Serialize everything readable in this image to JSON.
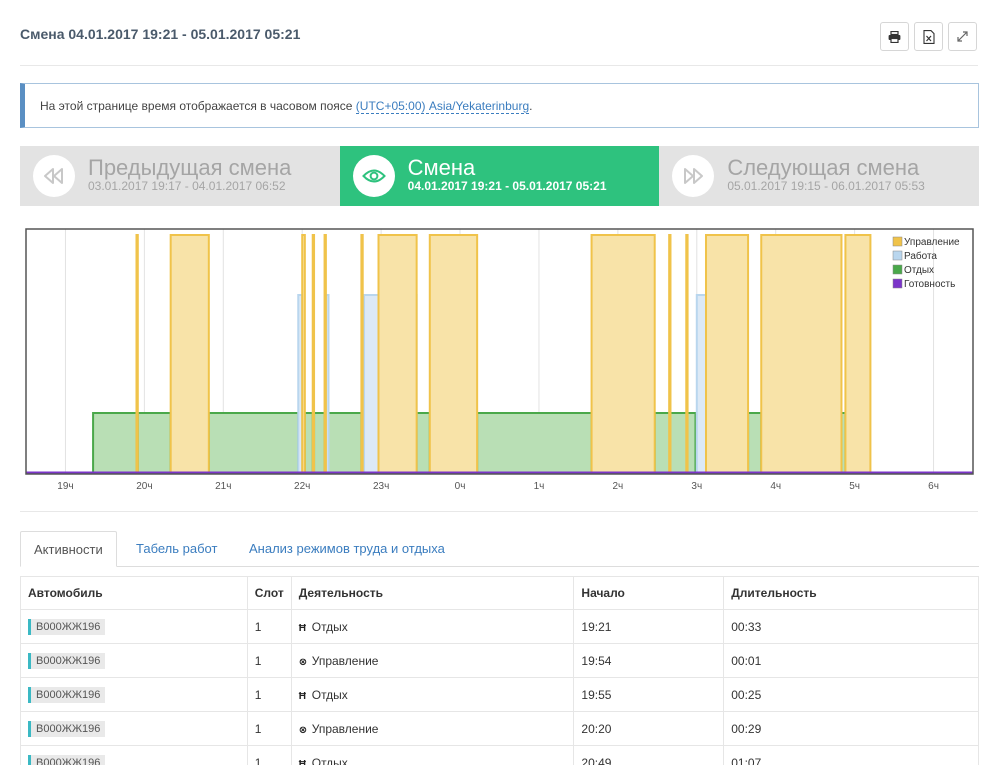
{
  "header": {
    "title": "Смена 04.01.2017 19:21 - 05.01.2017 05:21",
    "icons": [
      "print-icon",
      "excel-icon",
      "expand-icon"
    ]
  },
  "info": {
    "text": "На этой странице время отображается в часовом поясе ",
    "timezone": "(UTC+05:00) Asia/Yekaterinburg",
    "suffix": "."
  },
  "shifts": {
    "previous": {
      "label": "Предыдущая смена",
      "range": "03.01.2017 19:17 - 04.01.2017 06:52",
      "icon": "rewind-icon"
    },
    "current": {
      "label": "Смена",
      "range": "04.01.2017 19:21 - 05.01.2017 05:21",
      "icon": "eye-icon"
    },
    "next": {
      "label": "Следующая смена",
      "range": "05.01.2017 19:15 - 06.01.2017 05:53",
      "icon": "fast-forward-icon"
    }
  },
  "chart_data": {
    "type": "area",
    "x_unit": "hours",
    "x_range": [
      "18:30",
      "6:30"
    ],
    "xticks": [
      "19ч",
      "20ч",
      "21ч",
      "22ч",
      "23ч",
      "0ч",
      "1ч",
      "2ч",
      "3ч",
      "4ч",
      "5ч",
      "6ч"
    ],
    "ylim": [
      0,
      4
    ],
    "grid": true,
    "legend_position": "top-right",
    "series": [
      {
        "name": "Управление",
        "color": "#f0c34a",
        "level": 4,
        "intervals": [
          [
            "19:54",
            "19:55"
          ],
          [
            "20:20",
            "20:49"
          ],
          [
            "22:00",
            "22:02"
          ],
          [
            "22:08",
            "22:09"
          ],
          [
            "22:17",
            "22:18"
          ],
          [
            "22:45",
            "22:46"
          ],
          [
            "22:58",
            "23:27"
          ],
          [
            "23:37",
            "00:13"
          ],
          [
            "01:40",
            "02:28"
          ],
          [
            "02:39",
            "02:40"
          ],
          [
            "02:52",
            "02:53"
          ],
          [
            "03:07",
            "03:39"
          ],
          [
            "03:49",
            "04:50"
          ],
          [
            "04:53",
            "05:12"
          ]
        ]
      },
      {
        "name": "Работа",
        "color": "#b9d6ee",
        "level": 3,
        "intervals": [
          [
            "21:57",
            "22:00"
          ],
          [
            "22:18",
            "22:20"
          ],
          [
            "22:47",
            "22:58"
          ],
          [
            "23:26",
            "23:27"
          ],
          [
            "03:00",
            "03:07"
          ]
        ]
      },
      {
        "name": "Отдых",
        "color": "#4aa84a",
        "level": 1,
        "intervals": [
          [
            "19:21",
            "19:54"
          ],
          [
            "19:55",
            "20:20"
          ],
          [
            "20:49",
            "21:57"
          ],
          [
            "22:02",
            "22:08"
          ],
          [
            "22:09",
            "22:17"
          ],
          [
            "22:18",
            "22:45"
          ],
          [
            "23:27",
            "23:37"
          ],
          [
            "00:13",
            "01:40"
          ],
          [
            "02:28",
            "02:59"
          ],
          [
            "03:39",
            "03:49"
          ],
          [
            "04:50",
            "04:53"
          ]
        ]
      },
      {
        "name": "Готовность",
        "color": "#7b35c9",
        "level": 0,
        "intervals": [
          [
            "18:30",
            "06:30"
          ]
        ]
      }
    ]
  },
  "tabs": [
    {
      "label": "Активности",
      "active": true
    },
    {
      "label": "Табель работ",
      "active": false
    },
    {
      "label": "Анализ режимов труда и отдыха",
      "active": false
    }
  ],
  "table": {
    "headers": [
      "Автомобиль",
      "Слот",
      "Деятельность",
      "Начало",
      "Длительность"
    ],
    "rows": [
      {
        "car": "В000ЖЖ196",
        "slot": "1",
        "activity": "Отдых",
        "activity_icon": "bed-icon",
        "start": "19:21",
        "duration": "00:33"
      },
      {
        "car": "В000ЖЖ196",
        "slot": "1",
        "activity": "Управление",
        "activity_icon": "steering-wheel-icon",
        "start": "19:54",
        "duration": "00:01"
      },
      {
        "car": "В000ЖЖ196",
        "slot": "1",
        "activity": "Отдых",
        "activity_icon": "bed-icon",
        "start": "19:55",
        "duration": "00:25"
      },
      {
        "car": "В000ЖЖ196",
        "slot": "1",
        "activity": "Управление",
        "activity_icon": "steering-wheel-icon",
        "start": "20:20",
        "duration": "00:29"
      },
      {
        "car": "В000ЖЖ196",
        "slot": "1",
        "activity": "Отдых",
        "activity_icon": "bed-icon",
        "start": "20:49",
        "duration": "01:07"
      }
    ]
  }
}
